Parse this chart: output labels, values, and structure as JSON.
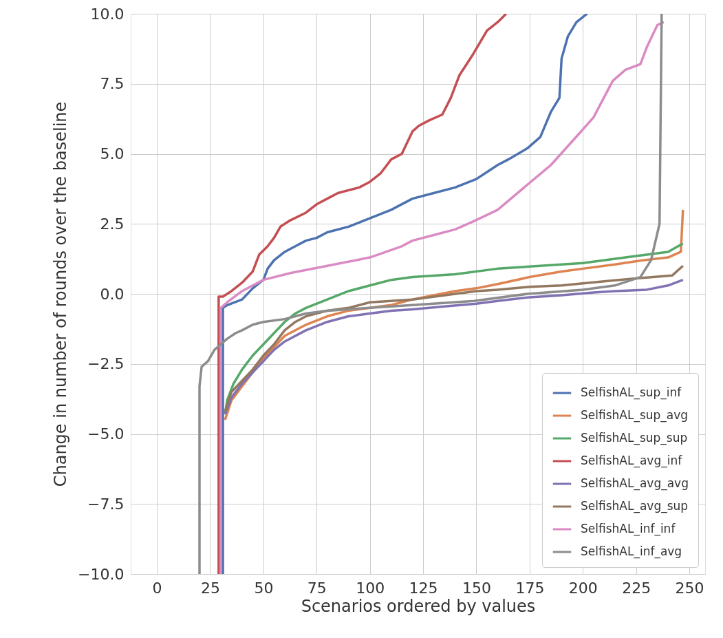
{
  "chart_data": {
    "type": "line",
    "xlabel": "Scenarios ordered by values",
    "ylabel": "Change in number of rounds over the baseline",
    "xlim": [
      -12.3,
      257.4
    ],
    "ylim": [
      -10,
      10
    ],
    "xticks": [
      0,
      25,
      50,
      75,
      100,
      125,
      150,
      175,
      200,
      225,
      250
    ],
    "yticks": [
      {
        "value": -10,
        "label": "−10.0"
      },
      {
        "value": -7.5,
        "label": "−7.5"
      },
      {
        "value": -5,
        "label": "−5.0"
      },
      {
        "value": -2.5,
        "label": "−2.5"
      },
      {
        "value": 0,
        "label": "0.0"
      },
      {
        "value": 2.5,
        "label": "2.5"
      },
      {
        "value": 5,
        "label": "5.0"
      },
      {
        "value": 7.5,
        "label": "7.5"
      },
      {
        "value": 10,
        "label": "10.0"
      }
    ],
    "grid": true,
    "legend": "bottom right",
    "line_style": "solid",
    "series": [
      {
        "name": "SelfishAL_sup_inf",
        "color": "#4c72b0",
        "x": [
          31,
          31,
          33,
          40,
          45,
          50,
          52,
          55,
          60,
          65,
          70,
          75,
          80,
          90,
          100,
          110,
          120,
          130,
          140,
          150,
          160,
          165,
          174,
          180,
          185,
          189,
          190,
          193,
          197,
          202
        ],
        "values": [
          -10,
          -0.5,
          -0.4,
          -0.2,
          0.2,
          0.5,
          0.9,
          1.2,
          1.5,
          1.7,
          1.9,
          2.0,
          2.2,
          2.4,
          2.7,
          3.0,
          3.4,
          3.6,
          3.8,
          4.1,
          4.6,
          4.8,
          5.2,
          5.6,
          6.5,
          7.0,
          8.4,
          9.2,
          9.7,
          10
        ]
      },
      {
        "name": "SelfishAL_sup_avg",
        "color": "#dd8452",
        "x": [
          32,
          35,
          40,
          45,
          50,
          55,
          60,
          70,
          80,
          90,
          100,
          110,
          120,
          130,
          140,
          150,
          160,
          175,
          190,
          200,
          215,
          228,
          240,
          246,
          247
        ],
        "values": [
          -4.5,
          -3.8,
          -3.3,
          -2.8,
          -2.3,
          -1.9,
          -1.5,
          -1.1,
          -0.8,
          -0.6,
          -0.5,
          -0.4,
          -0.2,
          -0.05,
          0.1,
          0.2,
          0.35,
          0.6,
          0.8,
          0.9,
          1.05,
          1.2,
          1.3,
          1.5,
          3.0
        ]
      },
      {
        "name": "SelfishAL_sup_sup",
        "color": "#55a868",
        "x": [
          32,
          33,
          36,
          40,
          45,
          50,
          55,
          60,
          65,
          70,
          80,
          90,
          100,
          110,
          120,
          140,
          160,
          180,
          200,
          220,
          240,
          247
        ],
        "values": [
          -4.3,
          -3.8,
          -3.2,
          -2.7,
          -2.2,
          -1.8,
          -1.4,
          -1.0,
          -0.7,
          -0.5,
          -0.2,
          0.1,
          0.3,
          0.5,
          0.6,
          0.7,
          0.9,
          1.0,
          1.1,
          1.3,
          1.5,
          1.8
        ]
      },
      {
        "name": "SelfishAL_avg_inf",
        "color": "#c44e52",
        "x": [
          29,
          29,
          31,
          35,
          40,
          45,
          48,
          52,
          55,
          58,
          62,
          70,
          75,
          80,
          85,
          95,
          100,
          105,
          110,
          115,
          120,
          123,
          128,
          134,
          138,
          142,
          148,
          155,
          160,
          164
        ],
        "values": [
          -10,
          -0.1,
          -0.1,
          0.1,
          0.4,
          0.8,
          1.4,
          1.7,
          2.0,
          2.4,
          2.6,
          2.9,
          3.2,
          3.4,
          3.6,
          3.8,
          4.0,
          4.3,
          4.8,
          5.0,
          5.8,
          6.0,
          6.2,
          6.4,
          7.0,
          7.8,
          8.5,
          9.4,
          9.7,
          10
        ]
      },
      {
        "name": "SelfishAL_avg_avg",
        "color": "#8172b3",
        "x": [
          32,
          35,
          40,
          45,
          50,
          55,
          60,
          70,
          80,
          90,
          100,
          110,
          120,
          135,
          150,
          160,
          175,
          190,
          205,
          215,
          230,
          240,
          247
        ],
        "values": [
          -4.3,
          -3.7,
          -3.2,
          -2.8,
          -2.4,
          -2.0,
          -1.7,
          -1.3,
          -1.0,
          -0.8,
          -0.7,
          -0.6,
          -0.55,
          -0.45,
          -0.35,
          -0.25,
          -0.12,
          -0.05,
          0.05,
          0.1,
          0.15,
          0.3,
          0.5
        ]
      },
      {
        "name": "SelfishAL_avg_sup",
        "color": "#937860",
        "x": [
          32,
          35,
          40,
          45,
          50,
          55,
          60,
          65,
          70,
          80,
          90,
          100,
          120,
          140,
          150,
          160,
          175,
          190,
          210,
          225,
          242,
          247
        ],
        "values": [
          -4.2,
          -3.5,
          -3.1,
          -2.7,
          -2.2,
          -1.8,
          -1.3,
          -1.0,
          -0.8,
          -0.6,
          -0.5,
          -0.3,
          -0.2,
          0.0,
          0.1,
          0.15,
          0.25,
          0.3,
          0.45,
          0.55,
          0.66,
          1.0
        ]
      },
      {
        "name": "SelfishAL_inf_inf",
        "color": "#da8bc3",
        "x": [
          30,
          30,
          33,
          40,
          45,
          50,
          63,
          80,
          100,
          115,
          120,
          130,
          140,
          149,
          160,
          174,
          185,
          198,
          205,
          214,
          220,
          227,
          230,
          235,
          238
        ],
        "values": [
          -10,
          -0.5,
          -0.3,
          0.1,
          0.3,
          0.5,
          0.75,
          1.0,
          1.3,
          1.7,
          1.9,
          2.1,
          2.3,
          2.6,
          3.0,
          3.9,
          4.6,
          5.7,
          6.3,
          7.6,
          8.0,
          8.2,
          8.8,
          9.6,
          9.7
        ]
      },
      {
        "name": "SelfishAL_inf_avg",
        "color": "#8c8c8c",
        "x": [
          20,
          20,
          21,
          24,
          27,
          30,
          33,
          37,
          40,
          45,
          50,
          60,
          70,
          80,
          100,
          120,
          149,
          174,
          200,
          215,
          227,
          232,
          236,
          237
        ],
        "values": [
          -10,
          -3.3,
          -2.6,
          -2.4,
          -2.0,
          -1.8,
          -1.6,
          -1.4,
          -1.3,
          -1.1,
          -1.0,
          -0.9,
          -0.7,
          -0.6,
          -0.5,
          -0.4,
          -0.25,
          0.0,
          0.15,
          0.3,
          0.6,
          1.2,
          2.5,
          10
        ]
      }
    ]
  }
}
